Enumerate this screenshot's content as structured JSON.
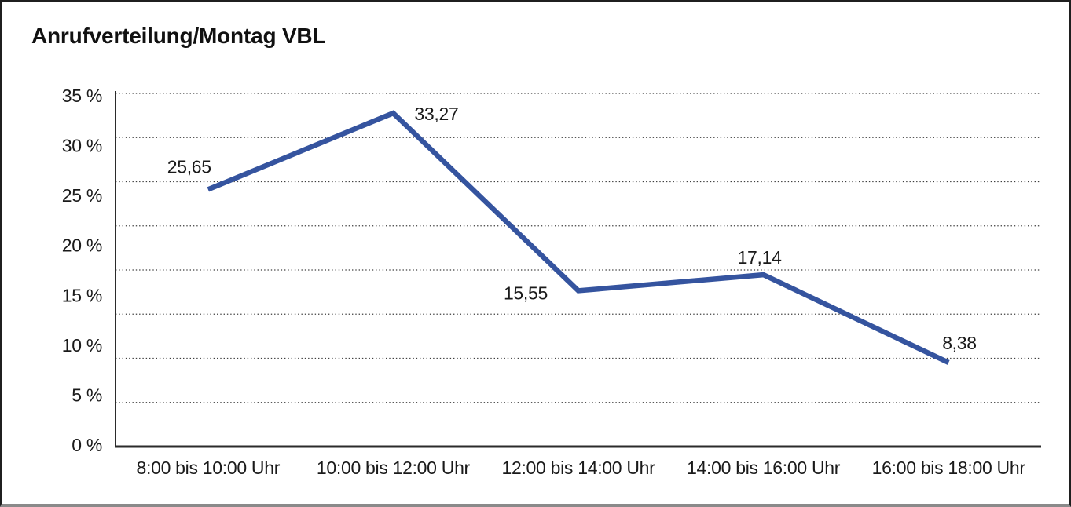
{
  "header": {
    "title": "Anrufverteilung/Montag VBL"
  },
  "chart_data": {
    "type": "line",
    "title": "Anrufverteilung/Montag VBL",
    "categories": [
      "8:00 bis 10:00 Uhr",
      "10:00 bis 12:00 Uhr",
      "12:00 bis 14:00 Uhr",
      "14:00 bis 16:00 Uhr",
      "16:00 bis 18:00 Uhr"
    ],
    "series": [
      {
        "values": [
          25.65,
          33.27,
          15.55,
          17.14,
          8.38
        ],
        "point_labels": [
          "25,65",
          "33,27",
          "15,55",
          "17,14",
          "8,38"
        ],
        "color": "#35549f"
      }
    ],
    "y_ticks": [
      "35 %",
      "30 %",
      "25 %",
      "20 %",
      "15 %",
      "10 %",
      "5 %",
      "0 %"
    ],
    "ylim": [
      0,
      35
    ],
    "y_tick_step": 5,
    "xlabel": "",
    "ylabel": "",
    "grid": "horizontal-dotted",
    "gridline_count": 8,
    "gridline_color": "#3f3f3f",
    "axis_color": "#2b2b2b",
    "legend": "none",
    "decimal_separator": ","
  }
}
